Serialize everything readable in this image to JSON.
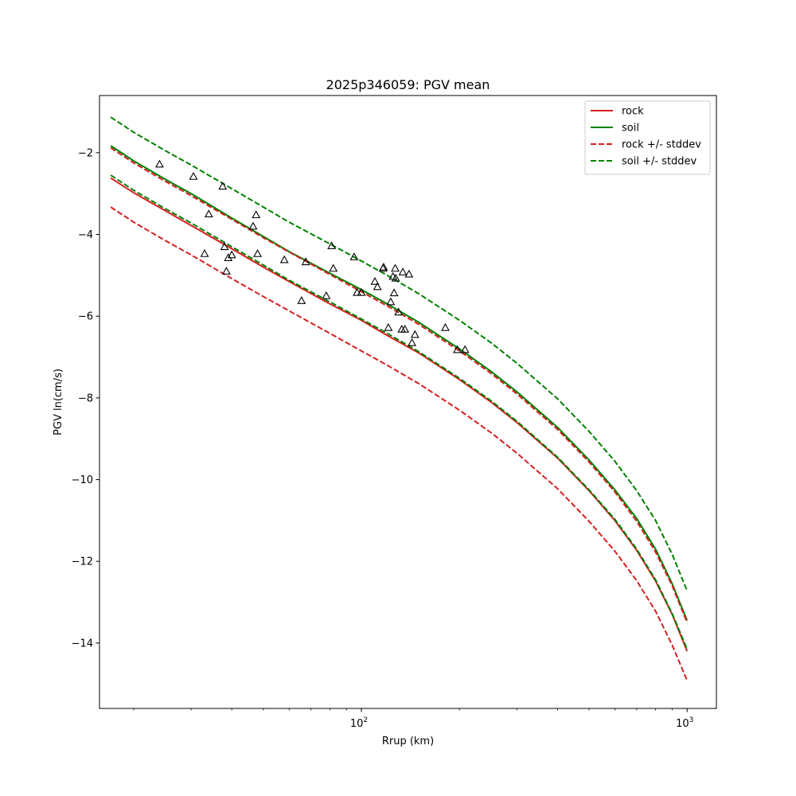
{
  "chart_data": {
    "type": "line",
    "title": "2025p346059: PGV mean",
    "xlabel": "Rrup (km)",
    "ylabel": "PGV ln(cm/s)",
    "xscale": "log",
    "xlim": [
      15.7,
      1230
    ],
    "ylim": [
      -15.6,
      -0.6
    ],
    "x_ticks": [
      {
        "value": 100,
        "base": "10",
        "exp": "2"
      },
      {
        "value": 1000,
        "base": "10",
        "exp": "3"
      }
    ],
    "y_ticks": [
      {
        "value": -2,
        "label": "−2"
      },
      {
        "value": -4,
        "label": "−4"
      },
      {
        "value": -6,
        "label": "−6"
      },
      {
        "value": -8,
        "label": "−8"
      },
      {
        "value": -10,
        "label": "−10"
      },
      {
        "value": -12,
        "label": "−12"
      },
      {
        "value": -14,
        "label": "−14"
      }
    ],
    "grid": false,
    "legend": "top-right",
    "series": [
      {
        "name": "rock",
        "color": "#d62020",
        "dash": "solid",
        "x": [
          17,
          20,
          25,
          30,
          40,
          50,
          60,
          80,
          100,
          120,
          150,
          200,
          250,
          300,
          400,
          500,
          600,
          700,
          800,
          900,
          1000
        ],
        "y": [
          -2.62,
          -2.98,
          -3.42,
          -3.78,
          -4.35,
          -4.8,
          -5.15,
          -5.7,
          -6.1,
          -6.47,
          -6.9,
          -7.55,
          -8.1,
          -8.6,
          -9.47,
          -10.27,
          -11.0,
          -11.73,
          -12.48,
          -13.3,
          -14.2
        ]
      },
      {
        "name": "soil",
        "color": "#008000",
        "dash": "solid",
        "x": [
          17,
          20,
          25,
          30,
          40,
          50,
          60,
          80,
          100,
          120,
          150,
          200,
          250,
          300,
          400,
          500,
          600,
          700,
          800,
          900,
          1000
        ],
        "y": [
          -1.83,
          -2.2,
          -2.65,
          -3.0,
          -3.6,
          -4.05,
          -4.42,
          -4.95,
          -5.35,
          -5.7,
          -6.15,
          -6.8,
          -7.35,
          -7.85,
          -8.72,
          -9.52,
          -10.25,
          -10.95,
          -11.7,
          -12.55,
          -13.45
        ]
      },
      {
        "name": "rock +/- stddev",
        "color": "#d62020",
        "dash": "dashed",
        "x": [
          17,
          20,
          25,
          30,
          40,
          50,
          60,
          80,
          100,
          120,
          150,
          200,
          250,
          300,
          400,
          500,
          600,
          700,
          800,
          900,
          1000
        ],
        "y": [
          -1.88,
          -2.25,
          -2.7,
          -3.05,
          -3.63,
          -4.08,
          -4.43,
          -4.98,
          -5.4,
          -5.75,
          -6.2,
          -6.85,
          -7.4,
          -7.9,
          -8.77,
          -9.57,
          -10.3,
          -11.02,
          -11.77,
          -12.6,
          -13.5
        ]
      },
      {
        "name": "rock +/- stddev",
        "color": "#d62020",
        "dash": "dashed",
        "x": [
          17,
          20,
          25,
          30,
          40,
          50,
          60,
          80,
          100,
          120,
          150,
          200,
          250,
          300,
          400,
          500,
          600,
          700,
          800,
          900,
          1000
        ],
        "y": [
          -3.33,
          -3.7,
          -4.15,
          -4.5,
          -5.08,
          -5.52,
          -5.87,
          -6.42,
          -6.85,
          -7.2,
          -7.65,
          -8.3,
          -8.85,
          -9.35,
          -10.22,
          -11.02,
          -11.75,
          -12.47,
          -13.22,
          -14.05,
          -14.92
        ]
      },
      {
        "name": "soil +/- stddev",
        "color": "#008000",
        "dash": "dashed",
        "x": [
          17,
          20,
          25,
          30,
          40,
          50,
          60,
          80,
          100,
          120,
          150,
          200,
          250,
          300,
          400,
          500,
          600,
          700,
          800,
          900,
          1000
        ],
        "y": [
          -1.13,
          -1.5,
          -1.95,
          -2.3,
          -2.88,
          -3.33,
          -3.7,
          -4.23,
          -4.65,
          -5.0,
          -5.45,
          -6.1,
          -6.65,
          -7.15,
          -8.02,
          -8.82,
          -9.55,
          -10.27,
          -11.0,
          -11.83,
          -12.72
        ]
      },
      {
        "name": "soil +/- stddev",
        "color": "#008000",
        "dash": "dashed",
        "x": [
          17,
          20,
          25,
          30,
          40,
          50,
          60,
          80,
          100,
          120,
          150,
          200,
          250,
          300,
          400,
          500,
          600,
          700,
          800,
          900,
          1000
        ],
        "y": [
          -2.55,
          -2.92,
          -3.37,
          -3.72,
          -4.3,
          -4.75,
          -5.12,
          -5.65,
          -6.07,
          -6.42,
          -6.87,
          -7.52,
          -8.07,
          -8.57,
          -9.45,
          -10.25,
          -10.97,
          -11.7,
          -12.45,
          -13.28,
          -14.15
        ]
      }
    ],
    "observations": {
      "marker": "open triangle",
      "color": "#000000",
      "x": [
        24,
        30.5,
        34,
        37.5,
        38,
        38.5,
        39,
        40,
        33,
        46.5,
        47.5,
        48,
        58,
        65.5,
        67.5,
        78,
        81,
        82,
        95,
        97,
        100,
        110,
        112,
        116.5,
        117,
        121,
        123,
        125,
        126,
        127,
        127.5,
        130,
        133,
        134,
        136,
        140,
        143,
        146,
        181,
        197,
        208
      ],
      "y": [
        -2.28,
        -2.58,
        -3.5,
        -2.82,
        -4.3,
        -4.9,
        -4.57,
        -4.5,
        -4.47,
        -3.8,
        -3.52,
        -4.47,
        -4.62,
        -5.62,
        -4.67,
        -5.5,
        -4.28,
        -4.83,
        -4.55,
        -5.42,
        -5.42,
        -5.15,
        -5.28,
        -4.83,
        -4.8,
        -6.28,
        -5.65,
        -5.03,
        -5.43,
        -4.83,
        -5.07,
        -5.9,
        -6.32,
        -4.92,
        -6.32,
        -4.97,
        -6.65,
        -6.45,
        -6.28,
        -6.82,
        -6.82
      ]
    }
  }
}
